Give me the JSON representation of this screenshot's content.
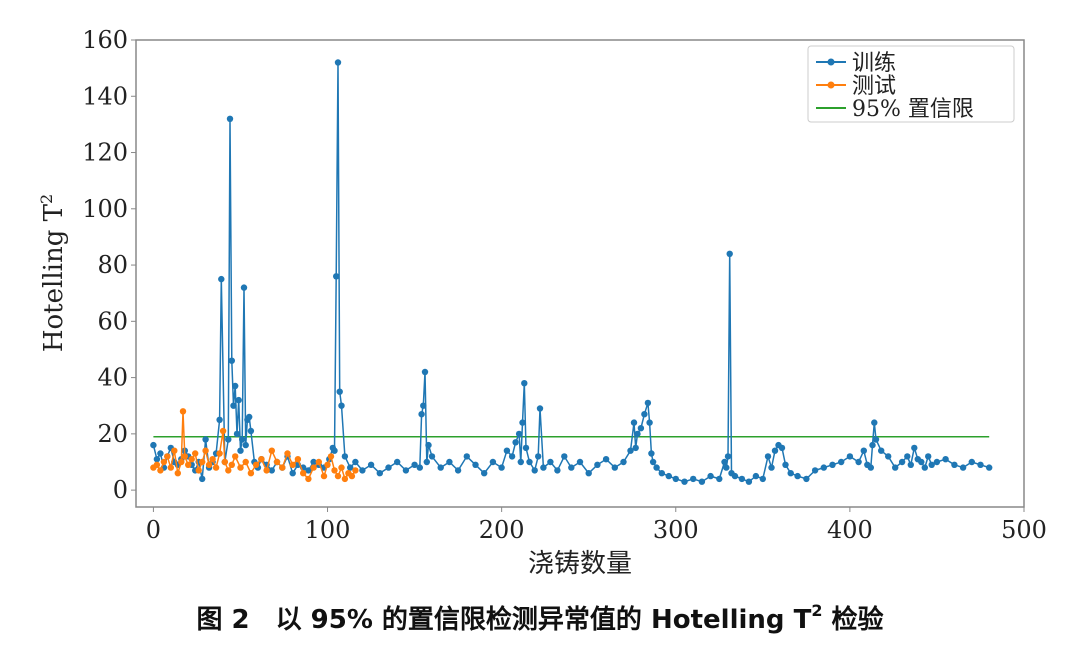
{
  "chart_data": {
    "type": "line",
    "xlabel": "浇铸数量",
    "ylabel": "Hotelling T",
    "ylabel_sup": "2",
    "xlim": [
      -10,
      500
    ],
    "ylim": [
      -6,
      160
    ],
    "xticks": [
      0,
      100,
      200,
      300,
      400,
      500
    ],
    "yticks": [
      0,
      20,
      40,
      60,
      80,
      100,
      120,
      140,
      160
    ],
    "grid": false,
    "legend_position": "top-right",
    "series": [
      {
        "name": "训练",
        "color": "#1f77b4",
        "marker": "circle",
        "x": [
          0,
          2,
          4,
          6,
          8,
          10,
          12,
          14,
          16,
          18,
          20,
          22,
          24,
          26,
          28,
          30,
          32,
          34,
          36,
          38,
          39,
          41,
          43,
          44,
          45,
          46,
          47,
          48,
          49,
          50,
          51,
          52,
          53,
          54,
          55,
          56,
          58,
          60,
          62,
          65,
          68,
          71,
          74,
          77,
          80,
          83,
          86,
          89,
          92,
          95,
          98,
          101,
          103,
          104,
          105,
          106,
          107,
          108,
          110,
          113,
          116,
          120,
          125,
          130,
          135,
          140,
          145,
          150,
          153,
          154,
          155,
          156,
          157,
          158,
          160,
          165,
          170,
          175,
          180,
          185,
          190,
          195,
          200,
          203,
          206,
          208,
          210,
          211,
          212,
          213,
          214,
          216,
          219,
          221,
          222,
          224,
          228,
          232,
          236,
          240,
          245,
          250,
          255,
          260,
          265,
          270,
          274,
          276,
          277,
          278,
          280,
          282,
          284,
          285,
          286,
          287,
          289,
          292,
          296,
          300,
          305,
          310,
          315,
          320,
          325,
          328,
          329,
          330,
          331,
          332,
          334,
          338,
          342,
          346,
          350,
          353,
          355,
          357,
          359,
          361,
          363,
          366,
          370,
          375,
          380,
          385,
          390,
          395,
          400,
          405,
          408,
          410,
          412,
          413,
          414,
          415,
          418,
          422,
          426,
          430,
          433,
          435,
          437,
          439,
          441,
          443,
          445,
          447,
          450,
          455,
          460,
          465,
          470,
          475,
          480
        ],
        "y": [
          16,
          11,
          13,
          8,
          12,
          15,
          10,
          9,
          11,
          14,
          12,
          9,
          7,
          10,
          4,
          18,
          8,
          10,
          13,
          25,
          75,
          10,
          18,
          132,
          46,
          30,
          37,
          20,
          32,
          14,
          18,
          72,
          16,
          25,
          26,
          21,
          10,
          8,
          11,
          9,
          7,
          10,
          8,
          12,
          6,
          9,
          8,
          7,
          10,
          9,
          8,
          11,
          15,
          14,
          76,
          152,
          35,
          30,
          12,
          8,
          10,
          7,
          9,
          6,
          8,
          10,
          7,
          9,
          8,
          27,
          30,
          42,
          10,
          16,
          12,
          8,
          10,
          7,
          12,
          9,
          6,
          10,
          8,
          14,
          12,
          17,
          20,
          10,
          24,
          38,
          15,
          10,
          7,
          12,
          29,
          8,
          10,
          7,
          12,
          8,
          10,
          6,
          9,
          11,
          8,
          10,
          14,
          24,
          15,
          20,
          22,
          27,
          31,
          24,
          13,
          10,
          8,
          6,
          5,
          4,
          3,
          4,
          3,
          5,
          4,
          10,
          8,
          12,
          84,
          6,
          5,
          4,
          3,
          5,
          4,
          12,
          8,
          14,
          16,
          15,
          9,
          6,
          5,
          4,
          7,
          8,
          9,
          10,
          12,
          10,
          14,
          9,
          8,
          16,
          24,
          18,
          14,
          12,
          8,
          10,
          12,
          9,
          15,
          11,
          10,
          8,
          12,
          9,
          10,
          11,
          9,
          8,
          10,
          9,
          8
        ]
      },
      {
        "name": "测试",
        "color": "#ff7f0e",
        "marker": "circle",
        "x": [
          0,
          2,
          4,
          6,
          8,
          10,
          12,
          14,
          16,
          17,
          18,
          20,
          22,
          24,
          26,
          28,
          30,
          32,
          34,
          36,
          38,
          40,
          41,
          43,
          45,
          47,
          50,
          53,
          56,
          59,
          62,
          65,
          68,
          71,
          74,
          77,
          80,
          83,
          86,
          89,
          92,
          95,
          98,
          100,
          102,
          104,
          106,
          108,
          110,
          112,
          114,
          116
        ],
        "y": [
          8,
          9,
          7,
          10,
          12,
          8,
          14,
          6,
          10,
          28,
          12,
          9,
          11,
          13,
          7,
          10,
          14,
          9,
          11,
          8,
          13,
          21,
          10,
          7,
          9,
          12,
          8,
          10,
          6,
          9,
          11,
          7,
          14,
          10,
          8,
          13,
          9,
          11,
          6,
          4,
          8,
          10,
          5,
          9,
          12,
          7,
          5,
          8,
          4,
          6,
          5,
          7
        ]
      },
      {
        "name": "95% 置信限",
        "color": "#2ca02c",
        "marker": "none",
        "x": [
          0,
          480
        ],
        "y": [
          19,
          19
        ]
      }
    ]
  },
  "caption": {
    "text": "图 2　以 95% 的置信限检测异常值的 Hotelling T",
    "sup": "2",
    "suffix": " 检验"
  }
}
